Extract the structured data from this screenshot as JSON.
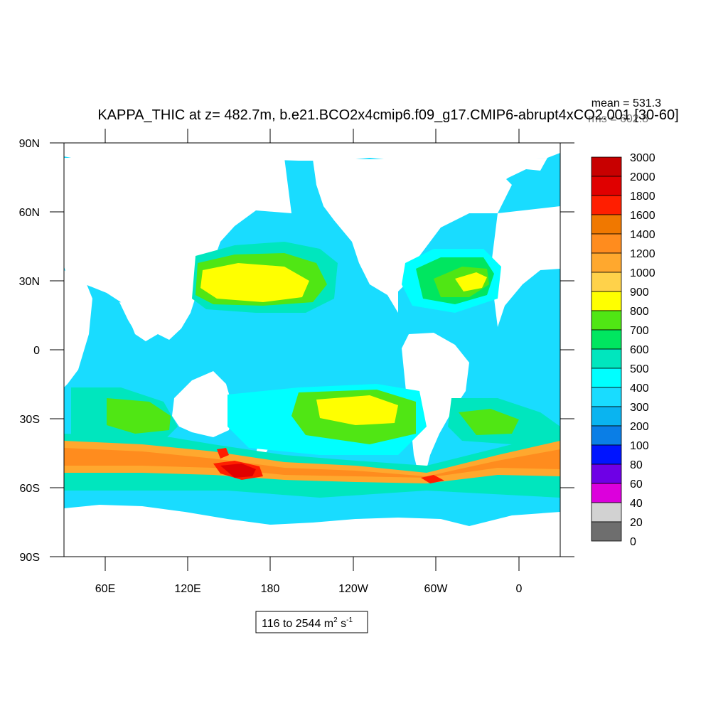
{
  "title": "KAPPA_THIC at z= 482.7m, b.e21.BCO2x4cmip6.f09_g17.CMIP6-abrupt4xCO2.001 [30-60]",
  "stats": {
    "mean": "mean = 531.3",
    "rms": "rms = 602.8"
  },
  "range_label": {
    "prefix": "116 to 2544 m",
    "sup1": "2",
    "mid": " s",
    "sup2": "-1"
  },
  "lat_ticks": [
    "90N",
    "60N",
    "30N",
    "0",
    "30S",
    "60S",
    "90S"
  ],
  "lon_ticks": [
    "60E",
    "120E",
    "180",
    "120W",
    "60W",
    "0"
  ],
  "colorbar": {
    "labels": [
      "3000",
      "2000",
      "1800",
      "1600",
      "1400",
      "1200",
      "1000",
      "900",
      "800",
      "700",
      "600",
      "500",
      "400",
      "300",
      "200",
      "100",
      "80",
      "60",
      "40",
      "20",
      "0"
    ],
    "colors": [
      "#c80000",
      "#e00000",
      "#ff1e00",
      "#f07800",
      "#ff8c1e",
      "#ffa82e",
      "#ffd24a",
      "#ffff00",
      "#50e614",
      "#00e660",
      "#00e6be",
      "#00ffff",
      "#19dcff",
      "#0ab4f0",
      "#0a7ee6",
      "#0014ff",
      "#6e00e6",
      "#dc00dc",
      "#d2d2d2",
      "#6e6e6e"
    ]
  },
  "palette": {
    "land": "#ffffff",
    "background_ocean": "#19dcff",
    "grid": "#000000"
  }
}
